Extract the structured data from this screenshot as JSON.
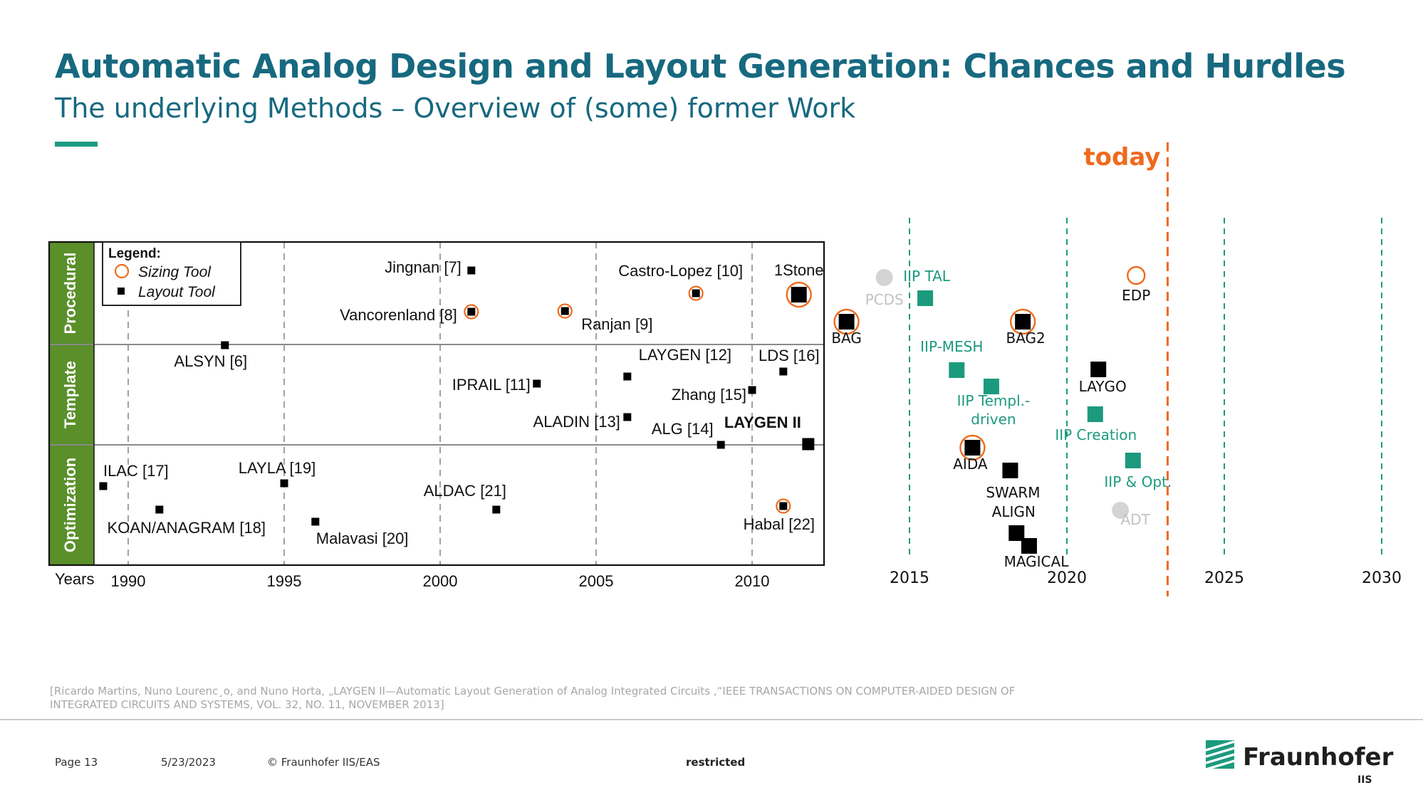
{
  "slide": {
    "title": "Automatic Analog Design and Layout Generation: Chances and Hurdles",
    "subtitle": "The underlying Methods – Overview of (some) former Work",
    "citation": "[Ricardo Martins, Nuno Lourenc¸o, and Nuno Horta, „LAYGEN II—Automatic Layout Generation of Analog Integrated Circuits ,“IEEE TRANSACTIONS ON COMPUTER-AIDED DESIGN OF INTEGRATED CIRCUITS AND SYSTEMS, VOL. 32, NO. 11, NOVEMBER 2013]"
  },
  "footer": {
    "page": "Page 13",
    "date": "5/23/2023",
    "copyright": "© Fraunhofer IIS/EAS",
    "classification": "restricted",
    "logo_text": "Fraunhofer",
    "logo_sub": "IIS"
  },
  "colors": {
    "title": "#17697f",
    "accent": "#1c9a7e",
    "sizing_circle": "#ef6b1c",
    "today": "#ee6a1f",
    "iip_marker": "#1c9a7e",
    "gray_marker": "#d4d4d4"
  },
  "chart_data": {
    "type": "scatter",
    "x_label": "Years",
    "x_range_left": [
      1987.6,
      2012.4
    ],
    "x_range_right": [
      2012.4,
      2031
    ],
    "x_ticks_left": [
      1990,
      1995,
      2000,
      2005,
      2010
    ],
    "x_ticks_right": [
      2015,
      2020,
      2025,
      2030
    ],
    "categories": [
      "Procedural",
      "Template",
      "Optimization"
    ],
    "legend": {
      "title": "Legend:",
      "items": [
        {
          "label": "Sizing Tool",
          "marker": "circle-orange"
        },
        {
          "label": "Layout Tool",
          "marker": "square-black"
        }
      ]
    },
    "today": {
      "label": "today",
      "year": 2023.2
    },
    "points": [
      {
        "label": "Jingnan [7]",
        "year": 2001,
        "category": "Procedural",
        "kind": "layout"
      },
      {
        "label": "Vancorenland [8]",
        "year": 2001,
        "category": "Procedural",
        "kind": "both"
      },
      {
        "label": "Ranjan [9]",
        "year": 2004,
        "category": "Procedural",
        "kind": "both"
      },
      {
        "label": "Castro-Lopez [10]",
        "year": 2008.2,
        "category": "Procedural",
        "kind": "both"
      },
      {
        "label": "1Stone",
        "year": 2011.5,
        "category": "Procedural",
        "kind": "both-large"
      },
      {
        "label": "ALSYN [6]",
        "year": 1993.1,
        "category": "Template",
        "kind": "layout"
      },
      {
        "label": "IPRAIL [11]",
        "year": 2003.1,
        "category": "Template",
        "kind": "layout"
      },
      {
        "label": "LAYGEN [12]",
        "year": 2006,
        "category": "Template",
        "kind": "layout"
      },
      {
        "label": "ALADIN [13]",
        "year": 2006,
        "category": "Template",
        "kind": "layout"
      },
      {
        "label": "Zhang [15]",
        "year": 2010,
        "category": "Template",
        "kind": "layout"
      },
      {
        "label": "LDS [16]",
        "year": 2011,
        "category": "Template",
        "kind": "layout"
      },
      {
        "label": "ALG [14]",
        "year": 2009,
        "category": "Template",
        "kind": "layout"
      },
      {
        "label": "LAYGEN II",
        "year": 2011.8,
        "category": "Optimization",
        "kind": "layout-large"
      },
      {
        "label": "ILAC [17]",
        "year": 1989.2,
        "category": "Optimization",
        "kind": "layout"
      },
      {
        "label": "KOAN/ANAGRAM [18]",
        "year": 1991,
        "category": "Optimization",
        "kind": "layout"
      },
      {
        "label": "LAYLA [19]",
        "year": 1995,
        "category": "Optimization",
        "kind": "layout"
      },
      {
        "label": "Malavasi [20]",
        "year": 1996,
        "category": "Optimization",
        "kind": "layout"
      },
      {
        "label": "ALDAC [21]",
        "year": 2001.8,
        "category": "Optimization",
        "kind": "layout"
      },
      {
        "label": "Habal [22]",
        "year": 2011,
        "category": "Optimization",
        "kind": "both"
      },
      {
        "label": "BAG",
        "year": 2013,
        "category": "Procedural",
        "kind": "both-large"
      },
      {
        "label": "BAG2",
        "year": 2018.6,
        "category": "Procedural",
        "kind": "both-large"
      },
      {
        "label": "EDP",
        "year": 2022.2,
        "category": "Procedural",
        "kind": "sizing"
      },
      {
        "label": "PCDS",
        "year": 2014.2,
        "category": "Procedural",
        "kind": "gray"
      },
      {
        "label": "IIP TAL",
        "year": 2015.5,
        "category": "Procedural",
        "kind": "iip"
      },
      {
        "label": "IIP-MESH",
        "year": 2016.5,
        "category": "Template",
        "kind": "iip"
      },
      {
        "label": "IIP Templ.- driven",
        "year": 2017.6,
        "category": "Template",
        "kind": "iip"
      },
      {
        "label": "LAYGO",
        "year": 2021,
        "category": "Template",
        "kind": "layout-large"
      },
      {
        "label": "IIP Creation",
        "year": 2020.9,
        "category": "Template",
        "kind": "iip"
      },
      {
        "label": "AIDA",
        "year": 2017,
        "category": "Optimization",
        "kind": "both-large"
      },
      {
        "label": "SWARM",
        "year": 2018.2,
        "category": "Optimization",
        "kind": "layout-large"
      },
      {
        "label": "IIP & Opt.",
        "year": 2022.1,
        "category": "Optimization",
        "kind": "iip"
      },
      {
        "label": "ADT",
        "year": 2021.7,
        "category": "Optimization",
        "kind": "gray"
      },
      {
        "label": "ALIGN",
        "year": 2018.4,
        "category": "Optimization",
        "kind": "layout-large"
      },
      {
        "label": "MAGICAL",
        "year": 2018.8,
        "category": "Optimization",
        "kind": "layout-large"
      }
    ]
  }
}
